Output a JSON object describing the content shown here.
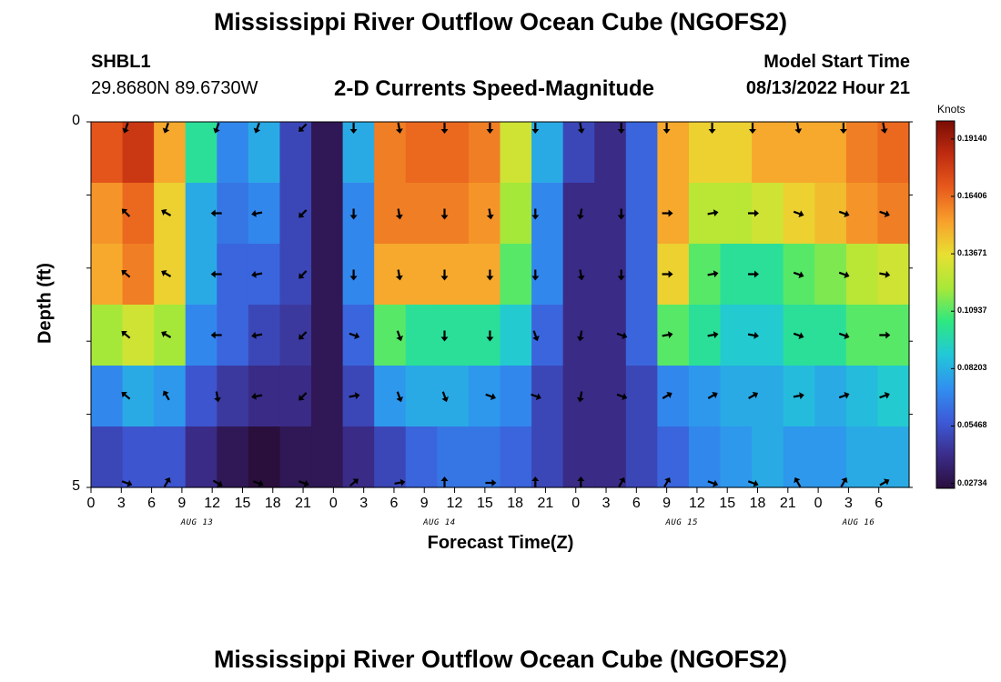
{
  "header": {
    "title": "Mississippi River Outflow Ocean Cube (NGOFS2)",
    "station_id": "SHBL1",
    "station_coords": "29.8680N  89.6730W",
    "subtitle": "2-D Currents Speed-Magnitude",
    "model_start_label": "Model Start Time",
    "model_start_value": "08/13/2022 Hour 21"
  },
  "footer": {
    "title_repeat": "Mississippi River Outflow Ocean Cube (NGOFS2)"
  },
  "chart_data": {
    "type": "heatmap",
    "title": "2-D Currents Speed-Magnitude",
    "xlabel": "Forecast Time(Z)",
    "ylabel": "Depth (ft)",
    "x_tick_labels": [
      "0",
      "3",
      "6",
      "9",
      "12",
      "15",
      "18",
      "21",
      "0",
      "3",
      "6",
      "9",
      "12",
      "15",
      "18",
      "21",
      "0",
      "3",
      "6",
      "9",
      "12",
      "15",
      "18",
      "21",
      "0",
      "3",
      "6"
    ],
    "x_month_labels": [
      "AUG 13",
      "AUG 14",
      "AUG 15",
      "AUG 16"
    ],
    "y_tick_labels": [
      "0",
      "5"
    ],
    "ylim": [
      0,
      5
    ],
    "colorbar": {
      "unit_label": "Knots",
      "tick_labels": [
        "0.19140",
        "0.16406",
        "0.13671",
        "0.10937",
        "0.08203",
        "0.05468",
        "0.02734"
      ],
      "colors": [
        "#2a0e3c",
        "#3b2d8a",
        "#3d5ad8",
        "#3090f0",
        "#22c8d8",
        "#2ee880",
        "#a8e838",
        "#e8e032",
        "#f8a02c",
        "#e85a1c",
        "#c02c10",
        "#7a0c04"
      ]
    },
    "depth_layers": 6,
    "speed_knots": [
      [
        0.17,
        0.18,
        0.15,
        0.1,
        0.07,
        0.08,
        0.05,
        0.03,
        0.08,
        0.16,
        0.165,
        0.165,
        0.16,
        0.13,
        0.08,
        0.05,
        0.04,
        0.06,
        0.15,
        0.14,
        0.14,
        0.15,
        0.15,
        0.15,
        0.16,
        0.165
      ],
      [
        0.155,
        0.165,
        0.14,
        0.08,
        0.065,
        0.07,
        0.05,
        0.03,
        0.07,
        0.16,
        0.16,
        0.16,
        0.155,
        0.12,
        0.07,
        0.04,
        0.04,
        0.06,
        0.15,
        0.125,
        0.125,
        0.13,
        0.14,
        0.145,
        0.155,
        0.16
      ],
      [
        0.15,
        0.16,
        0.14,
        0.08,
        0.06,
        0.06,
        0.05,
        0.03,
        0.07,
        0.15,
        0.15,
        0.15,
        0.15,
        0.11,
        0.07,
        0.04,
        0.04,
        0.06,
        0.14,
        0.11,
        0.1,
        0.1,
        0.11,
        0.115,
        0.125,
        0.13
      ],
      [
        0.12,
        0.13,
        0.12,
        0.07,
        0.06,
        0.05,
        0.045,
        0.03,
        0.06,
        0.11,
        0.1,
        0.1,
        0.1,
        0.09,
        0.06,
        0.04,
        0.04,
        0.06,
        0.11,
        0.1,
        0.09,
        0.09,
        0.1,
        0.1,
        0.11,
        0.11
      ],
      [
        0.07,
        0.08,
        0.075,
        0.055,
        0.045,
        0.04,
        0.04,
        0.03,
        0.05,
        0.075,
        0.08,
        0.08,
        0.075,
        0.07,
        0.05,
        0.04,
        0.04,
        0.05,
        0.07,
        0.075,
        0.08,
        0.08,
        0.085,
        0.08,
        0.085,
        0.09
      ],
      [
        0.05,
        0.055,
        0.055,
        0.04,
        0.03,
        0.025,
        0.03,
        0.03,
        0.04,
        0.05,
        0.06,
        0.065,
        0.065,
        0.06,
        0.05,
        0.04,
        0.04,
        0.05,
        0.06,
        0.07,
        0.075,
        0.08,
        0.075,
        0.075,
        0.08,
        0.08
      ]
    ],
    "vector_hours": [
      3.5,
      7.5,
      12.5,
      16.5,
      21,
      26,
      30.5,
      35,
      39.5,
      44,
      48.5,
      52.5,
      57,
      61.5,
      65.5,
      70,
      74.5,
      78.5
    ],
    "vector_direction_deg": [
      [
        200,
        200,
        200,
        200,
        225,
        180,
        170,
        180,
        180,
        180,
        170,
        180,
        180,
        180,
        180,
        170,
        180,
        170
      ],
      [
        315,
        300,
        270,
        260,
        225,
        180,
        170,
        180,
        170,
        180,
        190,
        180,
        90,
        80,
        90,
        110,
        110,
        110
      ],
      [
        310,
        300,
        270,
        260,
        225,
        180,
        170,
        180,
        180,
        180,
        170,
        180,
        90,
        80,
        90,
        110,
        110,
        100
      ],
      [
        310,
        300,
        270,
        260,
        225,
        110,
        160,
        180,
        180,
        160,
        190,
        110,
        80,
        80,
        100,
        110,
        110,
        90
      ],
      [
        310,
        330,
        170,
        260,
        225,
        80,
        160,
        160,
        110,
        110,
        190,
        110,
        60,
        60,
        60,
        80,
        70,
        70
      ],
      [
        110,
        30,
        120,
        110,
        110,
        50,
        80,
        0,
        90,
        0,
        0,
        30,
        30,
        110,
        110,
        330,
        30,
        60
      ]
    ]
  }
}
